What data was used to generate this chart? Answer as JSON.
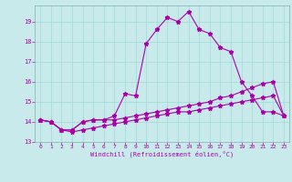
{
  "xlabel": "Windchill (Refroidissement éolien,°C)",
  "bg_color": "#c8eaea",
  "line_color": "#aa00aa",
  "grid_color": "#a0d8d8",
  "xlim": [
    -0.5,
    23.5
  ],
  "ylim": [
    13.0,
    19.8
  ],
  "yticks": [
    13,
    14,
    15,
    16,
    17,
    18,
    19
  ],
  "xticks": [
    0,
    1,
    2,
    3,
    4,
    5,
    6,
    7,
    8,
    9,
    10,
    11,
    12,
    13,
    14,
    15,
    16,
    17,
    18,
    19,
    20,
    21,
    22,
    23
  ],
  "series1_x": [
    0,
    1,
    2,
    3,
    4,
    5,
    6,
    7,
    8,
    9,
    10,
    11,
    12,
    13,
    14,
    15,
    16,
    17,
    18,
    19,
    20,
    21,
    22,
    23
  ],
  "series1_y": [
    14.1,
    14.0,
    13.6,
    13.6,
    14.0,
    14.1,
    14.1,
    14.3,
    15.4,
    15.3,
    17.9,
    18.6,
    19.2,
    19.0,
    19.5,
    18.6,
    18.4,
    17.7,
    17.5,
    16.0,
    15.3,
    14.5,
    14.5,
    14.3
  ],
  "series2_x": [
    0,
    1,
    2,
    3,
    4,
    5,
    6,
    7,
    8,
    9,
    10,
    11,
    12,
    13,
    14,
    15,
    16,
    17,
    18,
    19,
    20,
    21,
    22,
    23
  ],
  "series2_y": [
    14.1,
    14.0,
    13.6,
    13.6,
    14.0,
    14.1,
    14.1,
    14.1,
    14.2,
    14.3,
    14.4,
    14.5,
    14.6,
    14.7,
    14.8,
    14.9,
    15.0,
    15.2,
    15.3,
    15.5,
    15.7,
    15.9,
    16.0,
    14.3
  ],
  "series3_x": [
    0,
    1,
    2,
    3,
    4,
    5,
    6,
    7,
    8,
    9,
    10,
    11,
    12,
    13,
    14,
    15,
    16,
    17,
    18,
    19,
    20,
    21,
    22,
    23
  ],
  "series3_y": [
    14.1,
    14.0,
    13.6,
    13.5,
    13.6,
    13.7,
    13.8,
    13.9,
    14.0,
    14.1,
    14.2,
    14.3,
    14.4,
    14.5,
    14.5,
    14.6,
    14.7,
    14.8,
    14.9,
    15.0,
    15.1,
    15.2,
    15.3,
    14.3
  ]
}
